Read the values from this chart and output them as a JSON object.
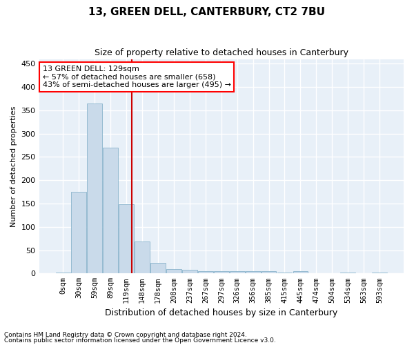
{
  "title": "13, GREEN DELL, CANTERBURY, CT2 7BU",
  "subtitle": "Size of property relative to detached houses in Canterbury",
  "xlabel": "Distribution of detached houses by size in Canterbury",
  "ylabel": "Number of detached properties",
  "bar_color": "#c9daea",
  "bar_edge_color": "#8ab4cc",
  "background_color": "#e8f0f8",
  "grid_color": "#ffffff",
  "annotation_text": "13 GREEN DELL: 129sqm\n← 57% of detached houses are smaller (658)\n43% of semi-detached houses are larger (495) →",
  "vline_color": "#cc0000",
  "vline_x": 4.33,
  "categories": [
    "0sqm",
    "30sqm",
    "59sqm",
    "89sqm",
    "119sqm",
    "148sqm",
    "178sqm",
    "208sqm",
    "237sqm",
    "267sqm",
    "297sqm",
    "326sqm",
    "356sqm",
    "385sqm",
    "415sqm",
    "445sqm",
    "474sqm",
    "504sqm",
    "534sqm",
    "563sqm",
    "593sqm"
  ],
  "values": [
    2,
    175,
    365,
    270,
    148,
    68,
    22,
    10,
    8,
    5,
    5,
    5,
    5,
    5,
    2,
    5,
    0,
    0,
    2,
    0,
    2
  ],
  "ylim": [
    0,
    460
  ],
  "yticks": [
    0,
    50,
    100,
    150,
    200,
    250,
    300,
    350,
    400,
    450
  ],
  "footnote1": "Contains HM Land Registry data © Crown copyright and database right 2024.",
  "footnote2": "Contains public sector information licensed under the Open Government Licence v3.0."
}
